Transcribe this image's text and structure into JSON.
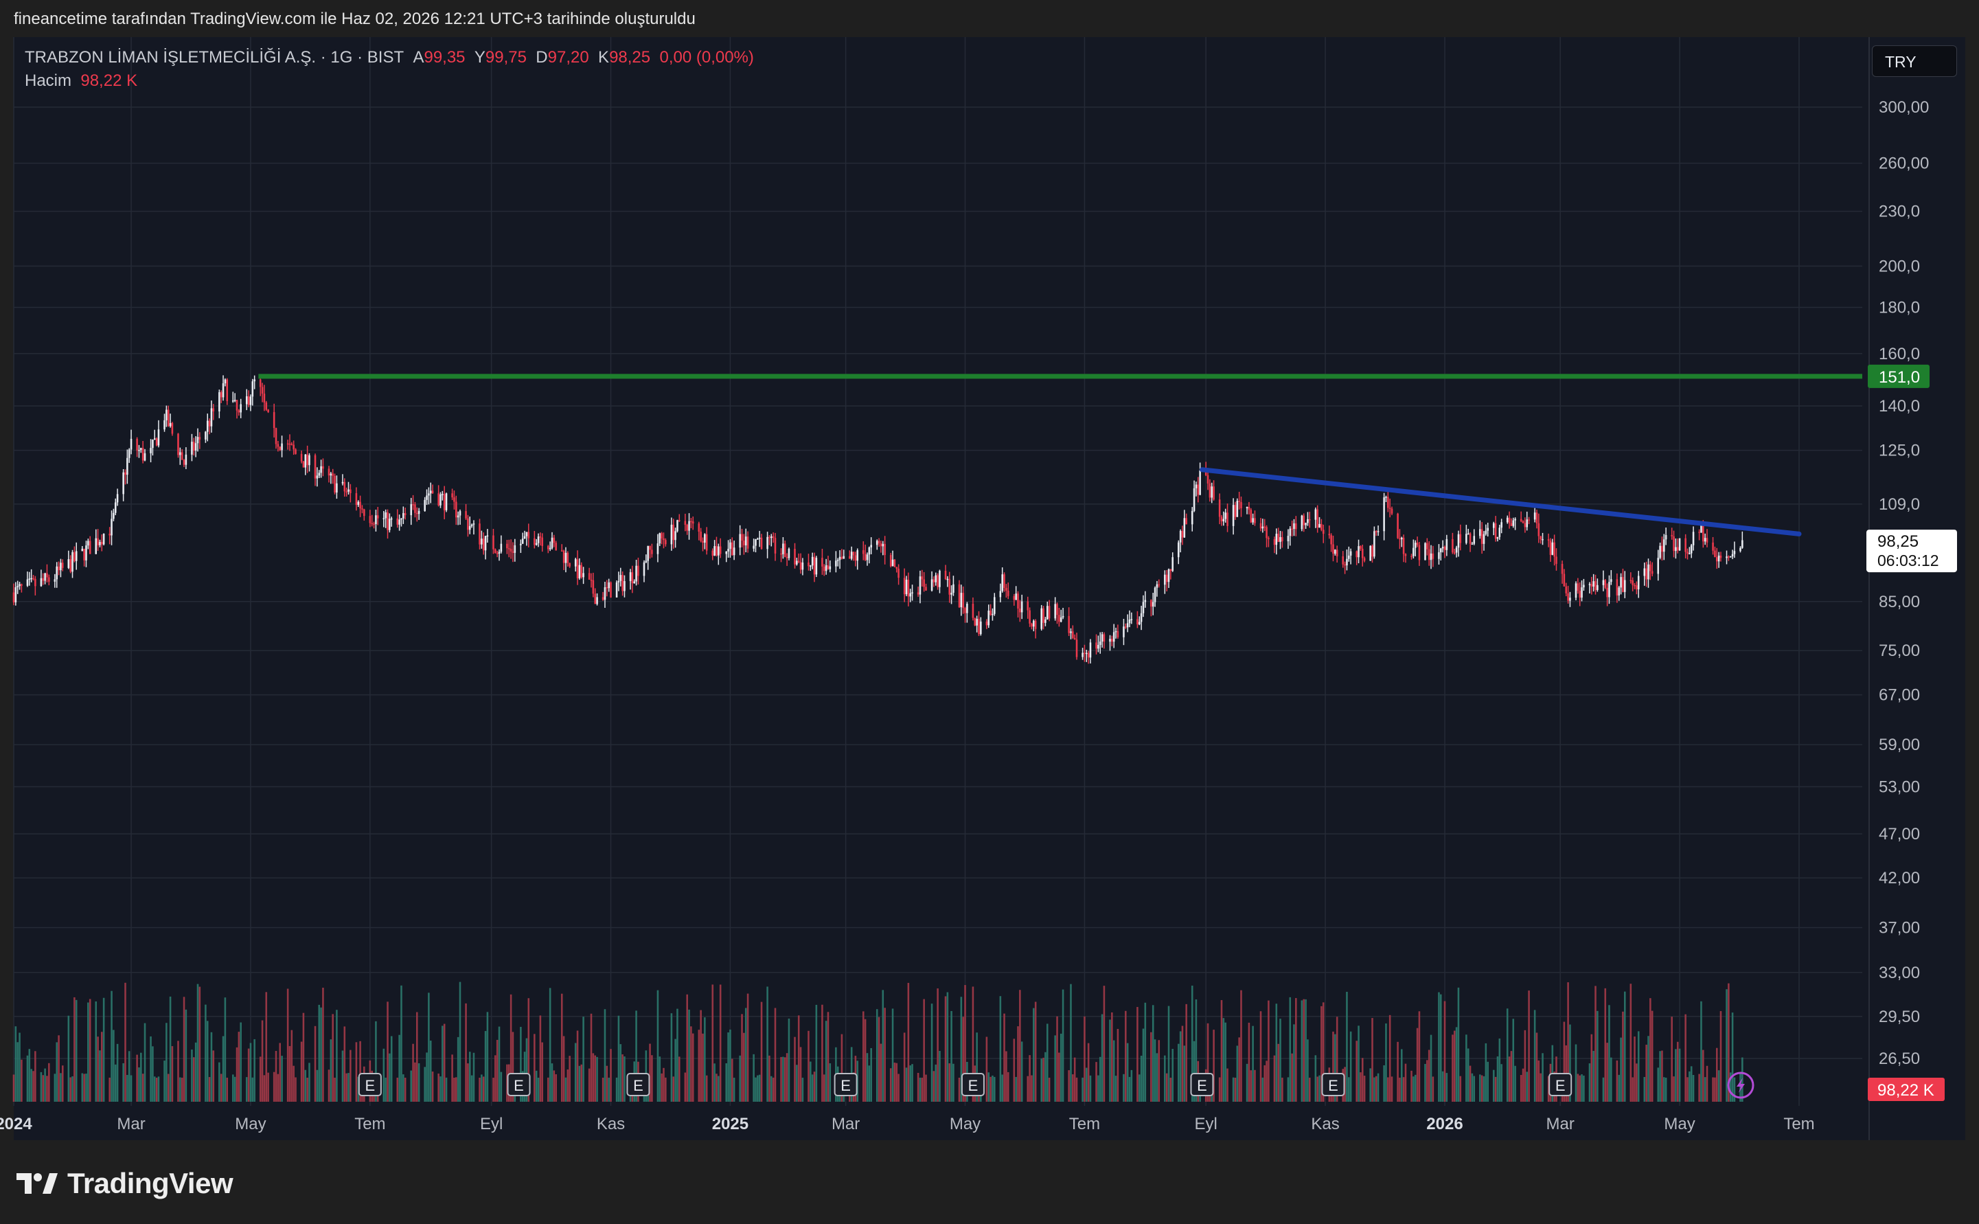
{
  "header": {
    "caption": "fineancetime tarafından TradingView.com ile Haz 02, 2026 12:21 UTC+3 tarihinde oluşturuldu"
  },
  "legend": {
    "symbol": "TRABZON LİMAN İŞLETMECİLİĞİ A.Ş. · 1G · BIST",
    "open_label": "A",
    "open": "99,35",
    "high_label": "Y",
    "high": "99,75",
    "low_label": "D",
    "low": "97,20",
    "close_label": "K",
    "close": "98,25",
    "change": "0,00 (0,00%)",
    "volume_label": "Hacim",
    "volume": "98,22 K"
  },
  "currency_button": "TRY",
  "brand": {
    "name": "TradingView"
  },
  "chart_data": {
    "type": "candlestick",
    "y_scale": "log",
    "y_ticks": [
      "300,00",
      "260,00",
      "230,0",
      "200,0",
      "180,0",
      "160,0",
      "140,0",
      "125,0",
      "109,0",
      "85,00",
      "75,00",
      "67,00",
      "59,00",
      "53,00",
      "47,00",
      "42,00",
      "37,00",
      "33,00",
      "29,50",
      "26,50"
    ],
    "y_tick_values": [
      300,
      260,
      230,
      200,
      180,
      160,
      140,
      125,
      109,
      85,
      75,
      67,
      59,
      53,
      47,
      42,
      37,
      33,
      29.5,
      26.5
    ],
    "x_ticks": [
      {
        "label": "2024",
        "date": "2024-01-01",
        "bold": true
      },
      {
        "label": "Mar",
        "date": "2024-03-01"
      },
      {
        "label": "May",
        "date": "2024-05-01"
      },
      {
        "label": "Tem",
        "date": "2024-07-01"
      },
      {
        "label": "Eyl",
        "date": "2024-09-01"
      },
      {
        "label": "Kas",
        "date": "2024-11-01"
      },
      {
        "label": "2025",
        "date": "2025-01-01",
        "bold": true
      },
      {
        "label": "Mar",
        "date": "2025-03-01"
      },
      {
        "label": "May",
        "date": "2025-05-01"
      },
      {
        "label": "Tem",
        "date": "2025-07-01"
      },
      {
        "label": "Eyl",
        "date": "2025-09-01"
      },
      {
        "label": "Kas",
        "date": "2025-11-01"
      },
      {
        "label": "2026",
        "date": "2026-01-01",
        "bold": true
      },
      {
        "label": "Mar",
        "date": "2026-03-01"
      },
      {
        "label": "May",
        "date": "2026-05-01"
      },
      {
        "label": "Tem",
        "date": "2026-07-01"
      }
    ],
    "price_path": [
      {
        "date": "2024-01-01",
        "close": 87
      },
      {
        "date": "2024-01-20",
        "close": 90
      },
      {
        "date": "2024-02-05",
        "close": 96
      },
      {
        "date": "2024-02-20",
        "close": 103
      },
      {
        "date": "2024-03-01",
        "close": 127
      },
      {
        "date": "2024-03-10",
        "close": 122
      },
      {
        "date": "2024-03-18",
        "close": 137
      },
      {
        "date": "2024-03-28",
        "close": 121
      },
      {
        "date": "2024-04-08",
        "close": 132
      },
      {
        "date": "2024-04-18",
        "close": 147
      },
      {
        "date": "2024-04-25",
        "close": 136
      },
      {
        "date": "2024-05-04",
        "close": 150
      },
      {
        "date": "2024-05-12",
        "close": 130
      },
      {
        "date": "2024-06-01",
        "close": 120
      },
      {
        "date": "2024-06-20",
        "close": 112
      },
      {
        "date": "2024-07-01",
        "close": 106
      },
      {
        "date": "2024-07-15",
        "close": 103
      },
      {
        "date": "2024-08-01",
        "close": 113
      },
      {
        "date": "2024-08-15",
        "close": 107
      },
      {
        "date": "2024-08-28",
        "close": 99
      },
      {
        "date": "2024-09-10",
        "close": 97
      },
      {
        "date": "2024-09-25",
        "close": 101
      },
      {
        "date": "2024-10-10",
        "close": 95
      },
      {
        "date": "2024-10-25",
        "close": 86
      },
      {
        "date": "2024-11-10",
        "close": 90
      },
      {
        "date": "2024-11-25",
        "close": 99
      },
      {
        "date": "2024-12-10",
        "close": 104
      },
      {
        "date": "2024-12-25",
        "close": 97
      },
      {
        "date": "2025-01-15",
        "close": 100
      },
      {
        "date": "2025-02-05",
        "close": 94
      },
      {
        "date": "2025-02-20",
        "close": 92
      },
      {
        "date": "2025-03-05",
        "close": 95
      },
      {
        "date": "2025-03-20",
        "close": 98
      },
      {
        "date": "2025-04-01",
        "close": 88
      },
      {
        "date": "2025-04-20",
        "close": 90
      },
      {
        "date": "2025-05-10",
        "close": 79
      },
      {
        "date": "2025-05-20",
        "close": 90
      },
      {
        "date": "2025-06-05",
        "close": 80
      },
      {
        "date": "2025-06-15",
        "close": 84
      },
      {
        "date": "2025-06-28",
        "close": 74
      },
      {
        "date": "2025-07-10",
        "close": 77
      },
      {
        "date": "2025-07-25",
        "close": 80
      },
      {
        "date": "2025-08-10",
        "close": 89
      },
      {
        "date": "2025-08-22",
        "close": 104
      },
      {
        "date": "2025-08-30",
        "close": 118
      },
      {
        "date": "2025-09-10",
        "close": 104
      },
      {
        "date": "2025-09-20",
        "close": 110
      },
      {
        "date": "2025-10-05",
        "close": 98
      },
      {
        "date": "2025-10-25",
        "close": 107
      },
      {
        "date": "2025-11-10",
        "close": 94
      },
      {
        "date": "2025-11-25",
        "close": 97
      },
      {
        "date": "2025-12-01",
        "close": 112
      },
      {
        "date": "2025-12-10",
        "close": 98
      },
      {
        "date": "2025-12-25",
        "close": 96
      },
      {
        "date": "2026-01-15",
        "close": 100
      },
      {
        "date": "2026-02-01",
        "close": 103
      },
      {
        "date": "2026-02-15",
        "close": 105
      },
      {
        "date": "2026-02-28",
        "close": 95
      },
      {
        "date": "2026-03-05",
        "close": 87
      },
      {
        "date": "2026-03-25",
        "close": 88
      },
      {
        "date": "2026-04-10",
        "close": 89
      },
      {
        "date": "2026-04-25",
        "close": 99
      },
      {
        "date": "2026-05-05",
        "close": 97
      },
      {
        "date": "2026-05-12",
        "close": 102
      },
      {
        "date": "2026-05-20",
        "close": 94
      },
      {
        "date": "2026-06-02",
        "close": 98.25
      }
    ],
    "horizontal_line": {
      "value": 151.0,
      "label": "151,0",
      "from_date": "2024-05-05",
      "color": "#1e7f2d"
    },
    "trend_line": {
      "from": {
        "date": "2025-08-30",
        "value": 119
      },
      "to": {
        "date": "2026-07-01",
        "value": 101
      },
      "color": "#1b3fae"
    },
    "last_price": {
      "label": "98,25",
      "countdown": "06:03:12"
    },
    "volume_label": "98,22 K",
    "earnings_markers": [
      "2024-07-01",
      "2024-09-15",
      "2024-11-15",
      "2025-03-01",
      "2025-05-05",
      "2025-08-30",
      "2025-11-05",
      "2026-03-01"
    ],
    "earnings_marker_text": "E",
    "colors": {
      "up": "#e9ecf2",
      "down": "#ee3a4d",
      "volume_up": "#2b7a6e",
      "volume_down": "#a33a48",
      "background": "#141823",
      "grid": "#252a36",
      "axis_text": "#b6b9c1"
    }
  }
}
